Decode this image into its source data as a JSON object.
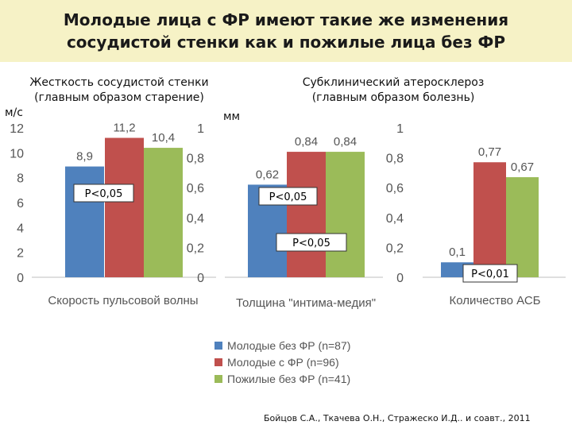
{
  "slide": {
    "title": "Молодые лица с ФР имеют такие же изменения сосудистой стенки как и пожилые лица без ФР",
    "left_heading": "Жесткость сосудистой стенки\n(главным образом старение)",
    "right_heading": "Субклинический атеросклероз\n(главным образом болезнь)",
    "unit_left": "м/с",
    "unit_middle": "мм",
    "citation": "Бойцов С.А., Ткачева О.Н., Стражеско И.Д.. и соавт., 2011"
  },
  "chart_data": [
    {
      "type": "bar",
      "category": "Скорость пульсовой волны",
      "ylim": [
        0,
        12
      ],
      "yticks": [
        "0",
        "2",
        "4",
        "6",
        "8",
        "10",
        "12"
      ],
      "series": [
        {
          "name": "Молодые без ФР (n=87)",
          "value": 8.9,
          "label": "8,9",
          "color": "#4f81bd"
        },
        {
          "name": "Молодые с ФР (n=96)",
          "value": 11.2,
          "label": "11,2",
          "color": "#c0504d"
        },
        {
          "name": "Пожилые без ФР (n=41)",
          "value": 10.4,
          "label": "10,4",
          "color": "#9bbb59"
        }
      ],
      "annotations": [
        "P<0,05"
      ]
    },
    {
      "type": "bar",
      "category": "Толщина \"интима-медия\"",
      "ylim": [
        0,
        1
      ],
      "yticks": [
        "0",
        "0,2",
        "0,4",
        "0,6",
        "0,8",
        "1"
      ],
      "series": [
        {
          "name": "Молодые без ФР (n=87)",
          "value": 0.62,
          "label": "0,62",
          "color": "#4f81bd"
        },
        {
          "name": "Молодые с ФР (n=96)",
          "value": 0.84,
          "label": "0,84",
          "color": "#c0504d"
        },
        {
          "name": "Пожилые без ФР (n=41)",
          "value": 0.84,
          "label": "0,84",
          "color": "#9bbb59"
        }
      ],
      "annotations": [
        "P<0,05",
        "P<0,05"
      ]
    },
    {
      "type": "bar",
      "category": "Количество АСБ",
      "ylim": [
        0,
        1
      ],
      "yticks": [
        "0",
        "0,2",
        "0,4",
        "0,6",
        "0,8",
        "1"
      ],
      "series": [
        {
          "name": "Молодые без ФР (n=87)",
          "value": 0.1,
          "label": "0,1",
          "color": "#4f81bd"
        },
        {
          "name": "Молодые с ФР (n=96)",
          "value": 0.77,
          "label": "0,77",
          "color": "#c0504d"
        },
        {
          "name": "Пожилые без ФР (n=41)",
          "value": 0.67,
          "label": "0,67",
          "color": "#9bbb59"
        }
      ],
      "annotations": [
        "P<0,01"
      ]
    }
  ],
  "legend": [
    {
      "label": "Молодые без ФР (n=87)",
      "color": "#4f81bd"
    },
    {
      "label": "Молодые с ФР (n=96)",
      "color": "#c0504d"
    },
    {
      "label": "Пожилые без ФР (n=41)",
      "color": "#9bbb59"
    }
  ]
}
